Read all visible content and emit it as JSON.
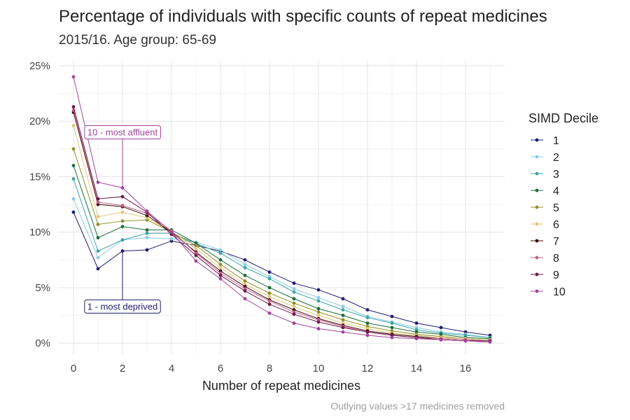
{
  "chart_data": {
    "type": "line",
    "title": "Percentage of individuals with specific counts of repeat medicines",
    "subtitle": "2015/16. Age group: 65-69",
    "xlabel": "Number of repeat medicines",
    "ylabel": "",
    "caption": "Outlying values >17 medicines removed",
    "x": [
      0,
      1,
      2,
      3,
      4,
      5,
      6,
      7,
      8,
      9,
      10,
      11,
      12,
      13,
      14,
      15,
      16,
      17
    ],
    "xlim": [
      -0.6,
      17.6
    ],
    "ylim": [
      -1,
      25.5
    ],
    "x_ticks": [
      0,
      2,
      4,
      6,
      8,
      10,
      12,
      14,
      16
    ],
    "y_ticks": [
      0,
      5,
      10,
      15,
      20,
      25
    ],
    "y_tick_labels": [
      "0%",
      "5%",
      "10%",
      "15%",
      "20%",
      "25%"
    ],
    "grid": true,
    "legend": {
      "title": "SIMD Decile",
      "position": "right"
    },
    "series": [
      {
        "name": "1",
        "color": "#1f1c6e",
        "values": [
          11.8,
          6.7,
          8.3,
          8.4,
          9.2,
          8.8,
          8.3,
          7.5,
          6.4,
          5.4,
          4.8,
          4.0,
          3.0,
          2.4,
          1.8,
          1.4,
          1.0,
          0.7
        ]
      },
      {
        "name": "2",
        "color": "#8ecae6",
        "values": [
          13.0,
          7.7,
          9.3,
          9.5,
          9.4,
          9.1,
          8.4,
          7.1,
          6.0,
          4.9,
          4.1,
          3.3,
          2.4,
          1.9,
          1.4,
          1.0,
          0.8,
          0.5
        ]
      },
      {
        "name": "3",
        "color": "#3aa6a6",
        "values": [
          14.8,
          8.3,
          9.3,
          9.9,
          9.9,
          9.0,
          8.1,
          6.8,
          5.8,
          4.6,
          3.8,
          3.0,
          2.3,
          1.8,
          1.2,
          0.9,
          0.7,
          0.5
        ]
      },
      {
        "name": "4",
        "color": "#1b6e3a",
        "values": [
          16.0,
          9.5,
          10.5,
          10.2,
          10.2,
          9.0,
          7.5,
          6.1,
          5.0,
          4.0,
          3.1,
          2.5,
          1.8,
          1.4,
          1.0,
          0.8,
          0.5,
          0.4
        ]
      },
      {
        "name": "5",
        "color": "#8f8f2a",
        "values": [
          17.5,
          10.7,
          11.0,
          11.1,
          10.0,
          8.8,
          7.1,
          5.6,
          4.5,
          3.6,
          2.8,
          2.1,
          1.5,
          1.1,
          0.8,
          0.6,
          0.4,
          0.3
        ]
      },
      {
        "name": "6",
        "color": "#e3c77a",
        "values": [
          19.6,
          11.4,
          11.8,
          11.3,
          10.0,
          8.5,
          6.8,
          5.3,
          4.2,
          3.3,
          2.5,
          1.8,
          1.3,
          0.9,
          0.7,
          0.5,
          0.4,
          0.3
        ]
      },
      {
        "name": "7",
        "color": "#3d0a0a",
        "values": [
          20.8,
          12.5,
          12.3,
          11.5,
          10.0,
          8.2,
          6.5,
          5.1,
          3.9,
          3.0,
          2.2,
          1.6,
          1.1,
          0.8,
          0.6,
          0.4,
          0.3,
          0.2
        ]
      },
      {
        "name": "8",
        "color": "#c46088",
        "values": [
          21.0,
          12.7,
          12.4,
          11.7,
          10.1,
          8.1,
          6.3,
          4.9,
          3.8,
          2.8,
          2.1,
          1.5,
          1.0,
          0.7,
          0.5,
          0.4,
          0.3,
          0.2
        ]
      },
      {
        "name": "9",
        "color": "#6e1a4a",
        "values": [
          21.3,
          13.0,
          13.2,
          11.8,
          9.8,
          7.9,
          6.1,
          4.7,
          3.5,
          2.6,
          1.9,
          1.4,
          1.0,
          0.7,
          0.5,
          0.3,
          0.2,
          0.2
        ]
      },
      {
        "name": "10",
        "color": "#a2439b",
        "values": [
          24.0,
          14.5,
          14.0,
          11.9,
          10.0,
          7.4,
          5.8,
          4.0,
          2.7,
          1.8,
          1.3,
          1.0,
          0.7,
          0.5,
          0.4,
          0.3,
          0.2,
          0.1
        ]
      }
    ],
    "annotations": [
      {
        "text": "10 - most affluent",
        "series": "10",
        "color": "#a2439b",
        "x": 2,
        "label_y": 19.0
      },
      {
        "text": "1 - most deprived",
        "series": "1",
        "color": "#1f1c6e",
        "x": 2,
        "label_y": 3.3
      }
    ]
  }
}
